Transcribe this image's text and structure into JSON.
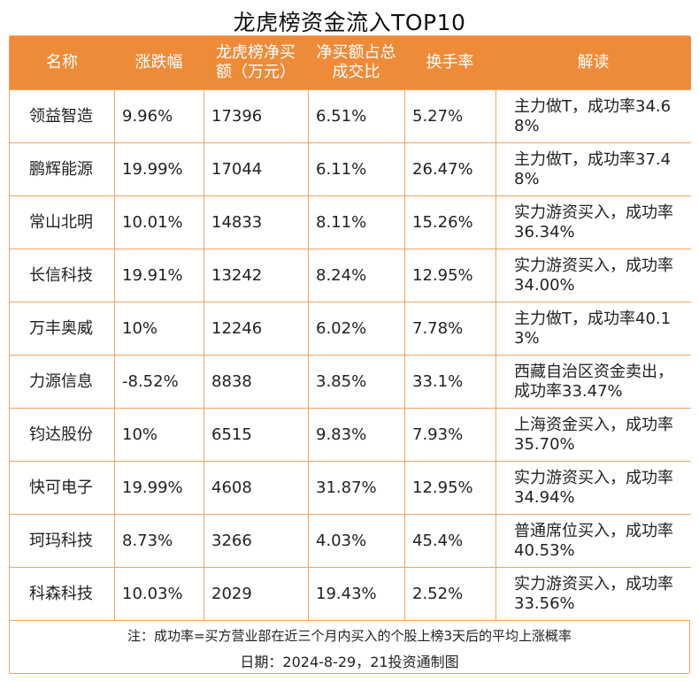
{
  "title": "龙虎榜资金流入TOP10",
  "headers": [
    "名称",
    "涨跌幅",
    "龙虎榜净买额（万元）",
    "净买额占总成交比",
    "换手率",
    "解读"
  ],
  "rows": [
    [
      "领益智造",
      "9.96%",
      "17396",
      "6.51%",
      "5.27%",
      "主力做T，成功率34.68%"
    ],
    [
      "鹏辉能源",
      "19.99%",
      "17044",
      "6.11%",
      "26.47%",
      "主力做T，成功率37.48%"
    ],
    [
      "常山北明",
      "10.01%",
      "14833",
      "8.11%",
      "15.26%",
      "实力游资买入，成功率36.34%"
    ],
    [
      "长信科技",
      "19.91%",
      "13242",
      "8.24%",
      "12.95%",
      "实力游资买入，成功率34.00%"
    ],
    [
      "万丰奥威",
      "10%",
      "12246",
      "6.02%",
      "7.78%",
      "主力做T，成功率40.13%"
    ],
    [
      "力源信息",
      "-8.52%",
      "8838",
      "3.85%",
      "33.1%",
      "西藏自治区资金卖出，成功率33.47%"
    ],
    [
      "钧达股份",
      "10%",
      "6515",
      "9.83%",
      "7.93%",
      "上海资金买入，成功率35.70%"
    ],
    [
      "快可电子",
      "19.99%",
      "4608",
      "31.87%",
      "12.95%",
      "实力游资买入，成功率34.94%"
    ],
    [
      "珂玛科技",
      "8.73%",
      "3266",
      "4.03%",
      "45.4%",
      "普通席位买入，成功率40.53%"
    ],
    [
      "科森科技",
      "10.03%",
      "2029",
      "19.43%",
      "2.52%",
      "实力游资买入，成功率33.56%"
    ]
  ],
  "note": "注：成功率=买方营业部在近三个月内买入的个股上榜3天后的平均上涨概率",
  "footer": "日期：2024-8-29，21投资通制图",
  "colors": {
    "header_bg": "#EE8B39",
    "border": "#F4A35E",
    "header_text": "#FFFFFF"
  }
}
